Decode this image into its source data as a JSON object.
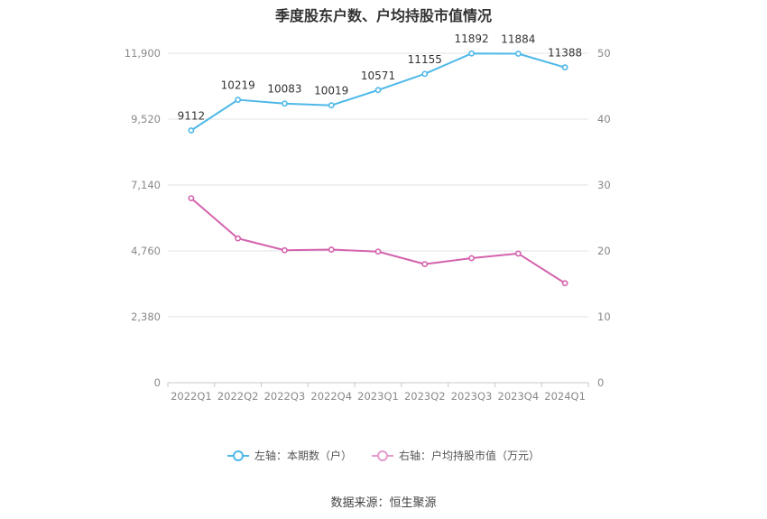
{
  "title": "季度股东户数、户均持股市值情况",
  "source": "数据来源：恒生聚源",
  "legend": [
    {
      "label": "左轴：本期数（户）",
      "color": "#4db8e8"
    },
    {
      "label": "右轴：户均持股市值（万元）",
      "color": "#e39bcf"
    }
  ],
  "chart_data": {
    "type": "line",
    "categories": [
      "2022Q1",
      "2022Q2",
      "2022Q3",
      "2022Q4",
      "2023Q1",
      "2023Q2",
      "2023Q3",
      "2023Q4",
      "2024Q1"
    ],
    "series": [
      {
        "name": "左轴：本期数（户）",
        "axis": "left",
        "color": "#4db8e8",
        "values": [
          9112,
          10219,
          10083,
          10019,
          10571,
          11155,
          11892,
          11884,
          11388
        ],
        "labels": [
          "9112",
          "10219",
          "10083",
          "10019",
          "10571",
          "11155",
          "11892",
          "11884",
          "11388"
        ]
      },
      {
        "name": "右轴：户均持股市值（万元）",
        "axis": "right",
        "color": "#d463ad",
        "values": [
          28.0,
          21.9,
          20.1,
          20.2,
          19.9,
          18.0,
          18.9,
          19.6,
          15.1
        ]
      }
    ],
    "left_axis": {
      "min": 0,
      "max": 11900,
      "ticks": [
        0,
        2380,
        4760,
        7140,
        9520,
        11900
      ],
      "tick_labels": [
        "0",
        "2,380",
        "4,760",
        "7,140",
        "9,520",
        "11,900"
      ]
    },
    "right_axis": {
      "min": 0,
      "max": 50,
      "ticks": [
        0,
        10,
        20,
        30,
        40,
        50
      ],
      "tick_labels": [
        "0",
        "10",
        "20",
        "30",
        "40",
        "50"
      ]
    },
    "grid": true,
    "legend_position": "bottom"
  }
}
